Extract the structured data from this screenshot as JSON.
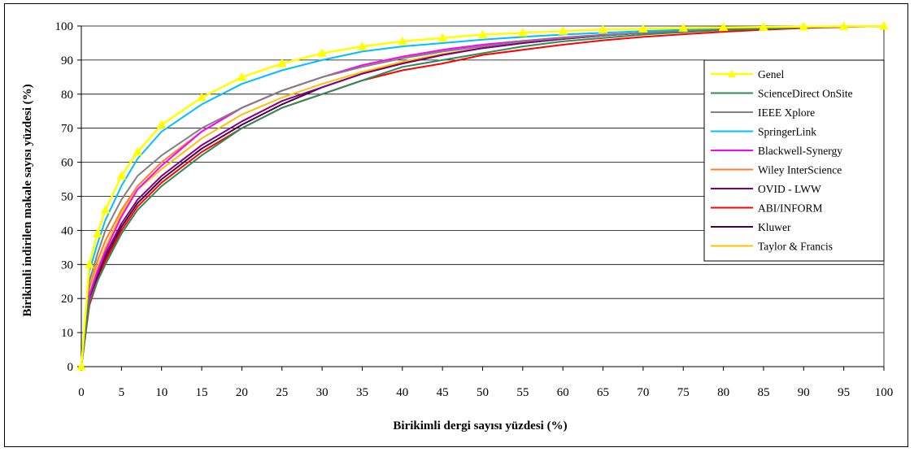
{
  "chart_data": {
    "type": "line",
    "title": "",
    "xlabel": "Birikimli dergi sayısı yüzdesi (%)",
    "ylabel": "Birikimli indirilen makale sayısı yüzdesi (%)",
    "xlim": [
      0,
      100
    ],
    "ylim": [
      0,
      100
    ],
    "x_ticks": [
      0,
      5,
      10,
      15,
      20,
      25,
      30,
      35,
      40,
      45,
      50,
      55,
      60,
      65,
      70,
      75,
      80,
      85,
      90,
      95,
      100
    ],
    "y_ticks": [
      0,
      10,
      20,
      30,
      40,
      50,
      60,
      70,
      80,
      90,
      100
    ],
    "grid": "horizontal",
    "legend_position": "right",
    "x": [
      0,
      1,
      2,
      3,
      5,
      7,
      10,
      15,
      20,
      25,
      30,
      35,
      40,
      45,
      50,
      55,
      60,
      65,
      70,
      75,
      80,
      85,
      90,
      95,
      100
    ],
    "series": [
      {
        "name": "Genel",
        "color": "#FFFF00",
        "marker": "triangle",
        "values": [
          0,
          30,
          39,
          46,
          56,
          63,
          71,
          79,
          85,
          89,
          92,
          94,
          95.5,
          96.5,
          97.5,
          98,
          98.5,
          99,
          99.2,
          99.4,
          99.6,
          99.7,
          99.8,
          99.9,
          100
        ]
      },
      {
        "name": "ScienceDirect OnSite",
        "color": "#2E8B57",
        "values": [
          0,
          19,
          25,
          30,
          39,
          46,
          53,
          62,
          70,
          76,
          80,
          84,
          88,
          90,
          92,
          94,
          95.5,
          96.5,
          97.5,
          98.2,
          98.8,
          99.2,
          99.6,
          99.8,
          100
        ]
      },
      {
        "name": "IEEE Xplore",
        "color": "#808080",
        "values": [
          0,
          25,
          33,
          40,
          49,
          56,
          62,
          70,
          76,
          81,
          85,
          88,
          90.5,
          92.5,
          94,
          95.5,
          96.5,
          97.3,
          98,
          98.6,
          99,
          99.3,
          99.6,
          99.8,
          100
        ]
      },
      {
        "name": "SpringerLink",
        "color": "#00BFFF",
        "values": [
          0,
          28,
          36,
          43,
          53,
          61,
          69,
          77,
          83,
          87,
          90,
          92.5,
          94,
          95,
          96,
          96.8,
          97.5,
          98,
          98.5,
          98.9,
          99.2,
          99.5,
          99.7,
          99.9,
          100
        ]
      },
      {
        "name": "Blackwell-Synergy",
        "color": "#FF00FF",
        "values": [
          0,
          21,
          28,
          34,
          44,
          52,
          59,
          69,
          76,
          81,
          85,
          88.5,
          91,
          93,
          94.5,
          95.6,
          96.6,
          97.4,
          98,
          98.5,
          99,
          99.3,
          99.6,
          99.8,
          100
        ]
      },
      {
        "name": "Wiley InterScience",
        "color": "#FF7F27",
        "values": [
          0,
          23,
          31,
          37,
          46,
          53,
          60,
          69,
          76,
          81,
          85,
          88.5,
          91,
          93,
          94.5,
          95.6,
          96.6,
          97.4,
          98,
          98.5,
          99,
          99.3,
          99.6,
          99.8,
          100
        ]
      },
      {
        "name": "OVID - LWW",
        "color": "#800080",
        "values": [
          0,
          20,
          27,
          33,
          42,
          49,
          56,
          65,
          72,
          78,
          82,
          86,
          89,
          91.5,
          93.5,
          95,
          96.2,
          97.2,
          98,
          98.6,
          99,
          99.3,
          99.6,
          99.8,
          100
        ]
      },
      {
        "name": "ABI/INFORM",
        "color": "#FF0000",
        "values": [
          0,
          18,
          25,
          31,
          40,
          47,
          54,
          63,
          70,
          76,
          80,
          84,
          87,
          89,
          91.5,
          93,
          94.5,
          95.8,
          96.8,
          97.6,
          98.3,
          98.9,
          99.4,
          99.7,
          100
        ]
      },
      {
        "name": "Kluwer",
        "color": "#4B0040",
        "values": [
          0,
          19,
          26,
          32,
          41,
          48,
          55,
          64,
          71,
          77,
          82,
          86,
          89,
          91.5,
          93.5,
          95,
          96.2,
          97.2,
          98,
          98.6,
          99,
          99.3,
          99.6,
          99.8,
          100
        ]
      },
      {
        "name": "Taylor & Francis",
        "color": "#FFC000",
        "values": [
          0,
          21,
          29,
          35,
          45,
          52,
          58,
          67,
          74,
          79,
          83,
          86.5,
          89.5,
          91.8,
          93.5,
          95,
          96.2,
          97.2,
          98,
          98.6,
          99,
          99.4,
          99.7,
          99.9,
          100
        ]
      }
    ]
  }
}
